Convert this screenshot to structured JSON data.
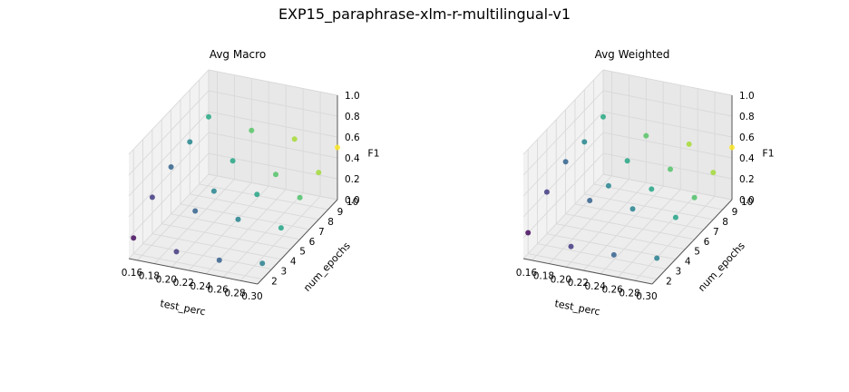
{
  "title": "EXP15_paraphrase-xlm-r-multilingual-v1",
  "chart_data": [
    {
      "type": "scatter3d",
      "title": "Avg Macro",
      "xlabel": "test_perc",
      "ylabel": "num_epochs",
      "zlabel": "F1",
      "xticks": [
        "0.16",
        "0.18",
        "0.20",
        "0.22",
        "0.24",
        "0.26",
        "0.28",
        "0.30"
      ],
      "yticks": [
        "2",
        "3",
        "4",
        "5",
        "6",
        "7",
        "8",
        "9",
        "10"
      ],
      "zticks": [
        "0.0",
        "0.2",
        "0.4",
        "0.6",
        "0.8",
        "1.0"
      ],
      "xlim": [
        0.15,
        0.3
      ],
      "ylim": [
        1.5,
        10
      ],
      "zlim": [
        0.0,
        1.0
      ],
      "grid": true,
      "colormap": "viridis",
      "points": [
        {
          "x": 0.15,
          "y": 2,
          "z": 0.15
        },
        {
          "x": 0.15,
          "y": 4,
          "z": 0.35
        },
        {
          "x": 0.15,
          "y": 6,
          "z": 0.45
        },
        {
          "x": 0.15,
          "y": 8,
          "z": 0.5
        },
        {
          "x": 0.15,
          "y": 10,
          "z": 0.55
        },
        {
          "x": 0.2,
          "y": 2,
          "z": 0.1
        },
        {
          "x": 0.2,
          "y": 4,
          "z": 0.3
        },
        {
          "x": 0.2,
          "y": 6,
          "z": 0.3
        },
        {
          "x": 0.2,
          "y": 8,
          "z": 0.4
        },
        {
          "x": 0.2,
          "y": 10,
          "z": 0.5
        },
        {
          "x": 0.25,
          "y": 2,
          "z": 0.1
        },
        {
          "x": 0.25,
          "y": 4,
          "z": 0.3
        },
        {
          "x": 0.25,
          "y": 6,
          "z": 0.35
        },
        {
          "x": 0.25,
          "y": 8,
          "z": 0.35
        },
        {
          "x": 0.25,
          "y": 10,
          "z": 0.5
        },
        {
          "x": 0.3,
          "y": 2,
          "z": 0.15
        },
        {
          "x": 0.3,
          "y": 4,
          "z": 0.3
        },
        {
          "x": 0.3,
          "y": 6,
          "z": 0.4
        },
        {
          "x": 0.3,
          "y": 8,
          "z": 0.45
        },
        {
          "x": 0.3,
          "y": 10,
          "z": 0.5
        }
      ]
    },
    {
      "type": "scatter3d",
      "title": "Avg Weighted",
      "xlabel": "test_perc",
      "ylabel": "num_epochs",
      "zlabel": "F1",
      "xticks": [
        "0.16",
        "0.18",
        "0.20",
        "0.22",
        "0.24",
        "0.26",
        "0.28",
        "0.30"
      ],
      "yticks": [
        "2",
        "3",
        "4",
        "5",
        "6",
        "7",
        "8",
        "9",
        "10"
      ],
      "zticks": [
        "0.0",
        "0.2",
        "0.4",
        "0.6",
        "0.8",
        "1.0"
      ],
      "xlim": [
        0.15,
        0.3
      ],
      "ylim": [
        1.5,
        10
      ],
      "zlim": [
        0.0,
        1.0
      ],
      "grid": true,
      "colormap": "viridis",
      "points": [
        {
          "x": 0.15,
          "y": 2,
          "z": 0.2
        },
        {
          "x": 0.15,
          "y": 4,
          "z": 0.4
        },
        {
          "x": 0.15,
          "y": 6,
          "z": 0.5
        },
        {
          "x": 0.15,
          "y": 8,
          "z": 0.5
        },
        {
          "x": 0.15,
          "y": 10,
          "z": 0.55
        },
        {
          "x": 0.2,
          "y": 2,
          "z": 0.15
        },
        {
          "x": 0.2,
          "y": 4,
          "z": 0.4
        },
        {
          "x": 0.2,
          "y": 6,
          "z": 0.35
        },
        {
          "x": 0.2,
          "y": 8,
          "z": 0.4
        },
        {
          "x": 0.2,
          "y": 10,
          "z": 0.45
        },
        {
          "x": 0.25,
          "y": 2,
          "z": 0.15
        },
        {
          "x": 0.25,
          "y": 4,
          "z": 0.4
        },
        {
          "x": 0.25,
          "y": 6,
          "z": 0.4
        },
        {
          "x": 0.25,
          "y": 8,
          "z": 0.4
        },
        {
          "x": 0.25,
          "y": 10,
          "z": 0.45
        },
        {
          "x": 0.3,
          "y": 2,
          "z": 0.2
        },
        {
          "x": 0.3,
          "y": 4,
          "z": 0.4
        },
        {
          "x": 0.3,
          "y": 6,
          "z": 0.4
        },
        {
          "x": 0.3,
          "y": 8,
          "z": 0.45
        },
        {
          "x": 0.3,
          "y": 10,
          "z": 0.5
        }
      ]
    }
  ]
}
